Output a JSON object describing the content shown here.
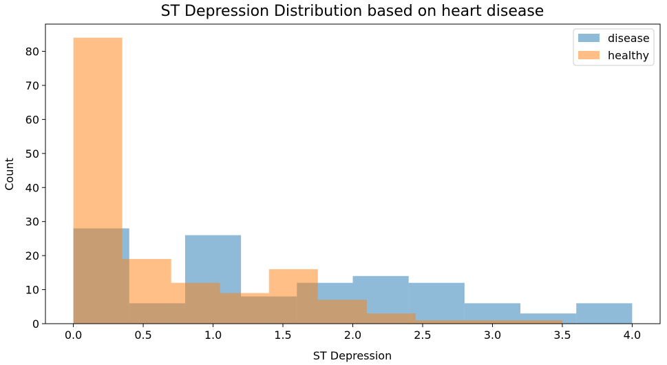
{
  "chart_data": {
    "type": "histogram",
    "title": "ST Depression Distribution based on heart disease",
    "xlabel": "ST Depression",
    "ylabel": "Count",
    "xlim": [
      -0.2,
      4.2
    ],
    "ylim": [
      0,
      88
    ],
    "xticks": [
      "0.0",
      "0.5",
      "1.0",
      "1.5",
      "2.0",
      "2.5",
      "3.0",
      "3.5",
      "4.0"
    ],
    "yticks": [
      "0",
      "10",
      "20",
      "30",
      "40",
      "50",
      "60",
      "70",
      "80"
    ],
    "grid": false,
    "legend_position": "top-right",
    "series": [
      {
        "name": "disease",
        "color": "#1f77b4",
        "opacity": 0.5,
        "bin_edges": [
          0.0,
          0.4,
          0.8,
          1.2,
          1.6,
          2.0,
          2.4,
          2.8,
          3.2,
          3.6,
          4.0
        ],
        "counts": [
          28,
          6,
          26,
          8,
          12,
          14,
          12,
          6,
          3,
          6
        ]
      },
      {
        "name": "healthy",
        "color": "#ff7f0e",
        "opacity": 0.5,
        "bin_edges": [
          0.0,
          0.35,
          0.7,
          1.05,
          1.4,
          1.75,
          2.1,
          2.45,
          2.8,
          3.15,
          3.5
        ],
        "counts": [
          84,
          19,
          12,
          9,
          16,
          7,
          3,
          1,
          1,
          1
        ]
      }
    ]
  }
}
